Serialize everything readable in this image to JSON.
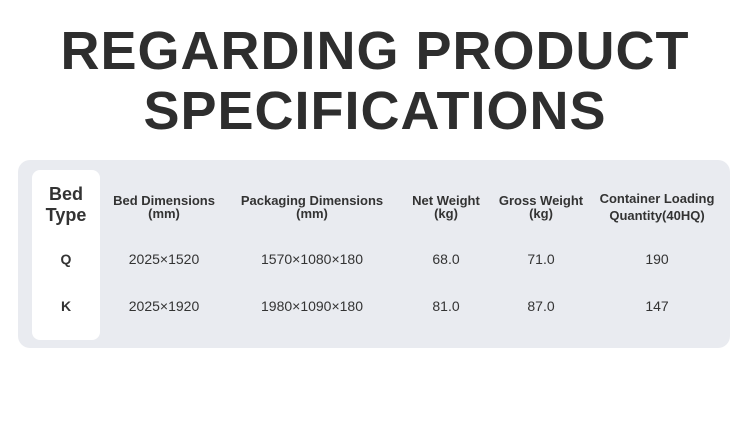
{
  "header": {
    "title_lines": [
      "REGARDING PRODUCT",
      "SPECIFICATIONS"
    ]
  },
  "table": {
    "columns": [
      [
        "Bed",
        "Type"
      ],
      [
        "Bed Dimensions",
        "(mm)"
      ],
      [
        "Packaging Dimensions",
        "(mm)"
      ],
      [
        "Net Weight",
        "(kg)"
      ],
      [
        "Gross Weight",
        "(kg)"
      ],
      [
        "Container Loading",
        "Quantity(40HQ)"
      ]
    ],
    "rows": [
      [
        "Q",
        "2025×1520",
        "1570×1080×180",
        "68.0",
        "71.0",
        "190"
      ],
      [
        "K",
        "2025×1920",
        "1980×1090×180",
        "81.0",
        "87.0",
        "147"
      ]
    ]
  }
}
